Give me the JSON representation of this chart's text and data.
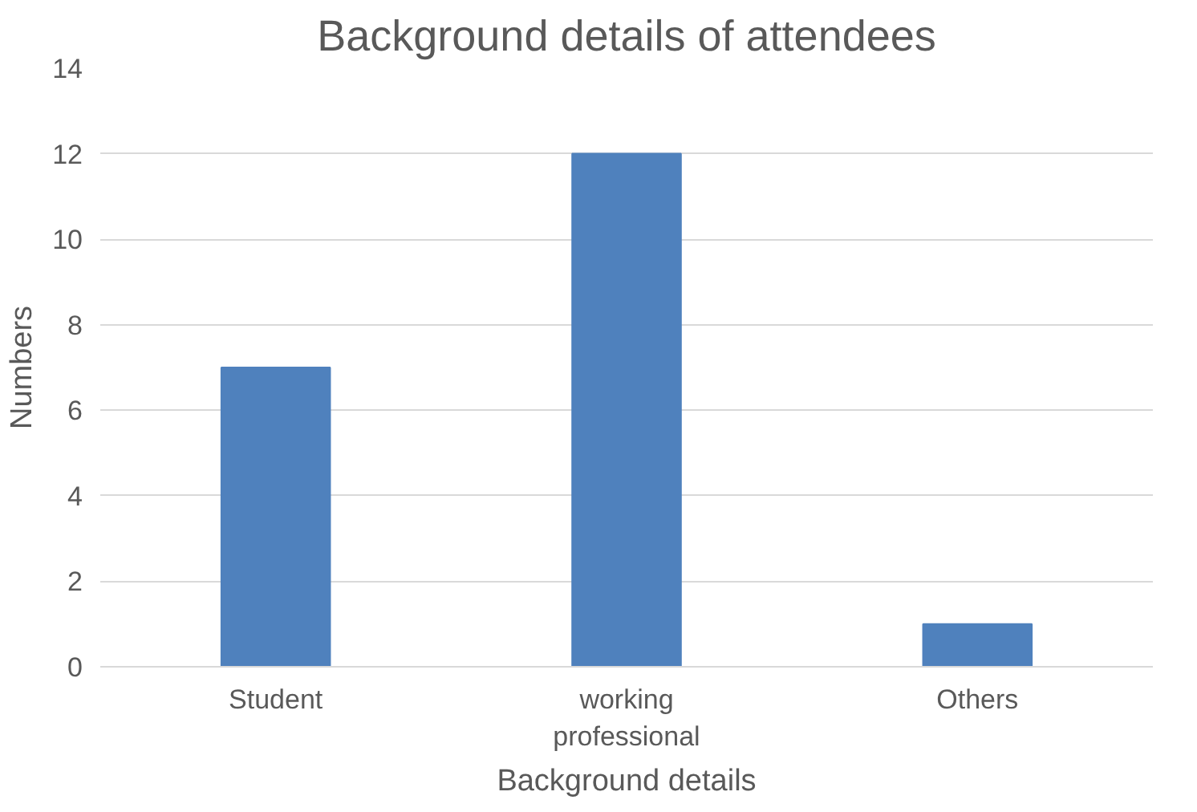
{
  "chart_data": {
    "type": "bar",
    "title": "Background details of attendees",
    "xlabel": "Background details",
    "ylabel": "Numbers",
    "categories": [
      "Student",
      "working professional",
      "Others"
    ],
    "values": [
      7,
      12,
      1
    ],
    "color": "#4f81bd",
    "ylim": [
      0,
      14
    ],
    "yticks": [
      0,
      2,
      4,
      6,
      8,
      10,
      12,
      14
    ],
    "grid": "y"
  }
}
